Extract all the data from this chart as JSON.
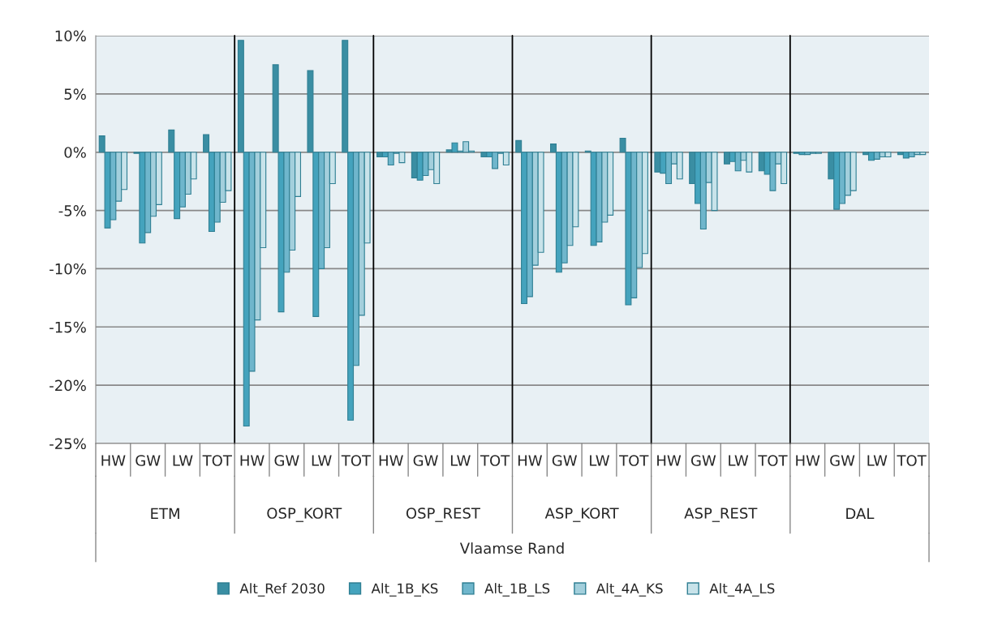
{
  "chart_data": {
    "type": "bar",
    "categories": [
      "HW",
      "GW",
      "LW",
      "TOT",
      "HW",
      "GW",
      "LW",
      "TOT",
      "HW",
      "GW",
      "LW",
      "TOT",
      "HW",
      "GW",
      "LW",
      "TOT",
      "HW",
      "GW",
      "LW",
      "TOT",
      "HW",
      "GW",
      "LW",
      "TOT"
    ],
    "annotations": [
      "ETM",
      "OSP_KORT",
      "OSP_REST",
      "ASP_KORT",
      "ASP_REST",
      "DAL",
      "Vlaamse Rand"
    ],
    "series": [
      {
        "name": "Alt_Ref 2030",
        "color": "#3a8ea3",
        "values": [
          1.4,
          -0.1,
          1.9,
          1.5,
          9.6,
          7.5,
          7.0,
          9.6,
          -0.4,
          -2.2,
          0.2,
          -0.4,
          1.0,
          0.7,
          0.1,
          1.2,
          -1.7,
          -2.7,
          -1.0,
          -1.6,
          -0.1,
          -2.3,
          -0.2,
          -0.2
        ]
      },
      {
        "name": "Alt_1B_KS",
        "color": "#44a3bd",
        "values": [
          -6.5,
          -7.8,
          -5.7,
          -6.8,
          -23.5,
          -13.7,
          -14.1,
          -23.0,
          -0.4,
          -2.4,
          0.8,
          -0.4,
          -13.0,
          -10.3,
          -8.0,
          -13.1,
          -1.8,
          -4.4,
          -0.8,
          -1.9,
          -0.2,
          -4.9,
          -0.7,
          -0.5
        ]
      },
      {
        "name": "Alt_1B_LS",
        "color": "#6fb6cc",
        "values": [
          -5.8,
          -6.9,
          -4.7,
          -6.0,
          -18.8,
          -10.3,
          -10.0,
          -18.3,
          -1.1,
          -2.0,
          0.1,
          -1.4,
          -12.4,
          -9.5,
          -7.7,
          -12.5,
          -2.7,
          -6.6,
          -1.6,
          -3.3,
          -0.2,
          -4.4,
          -0.6,
          -0.4
        ]
      },
      {
        "name": "Alt_4A_KS",
        "color": "#a3cfdc",
        "values": [
          -4.2,
          -5.5,
          -3.6,
          -4.3,
          -14.4,
          -8.4,
          -8.2,
          -14.0,
          -0.1,
          -1.5,
          0.9,
          -0.1,
          -9.7,
          -8.0,
          -6.0,
          -9.9,
          -1.0,
          -2.6,
          -0.7,
          -1.0,
          -0.1,
          -3.7,
          -0.4,
          -0.2
        ]
      },
      {
        "name": "Alt_4A_LS",
        "color": "#c8e3ea",
        "values": [
          -3.2,
          -4.5,
          -2.3,
          -3.3,
          -8.2,
          -3.8,
          -2.7,
          -7.8,
          -0.9,
          -2.7,
          0.1,
          -1.1,
          -8.6,
          -6.4,
          -5.4,
          -8.7,
          -2.3,
          -5.0,
          -1.7,
          -2.7,
          -0.1,
          -3.3,
          -0.4,
          -0.2
        ]
      }
    ],
    "ylim": [
      -25,
      10
    ],
    "yticks": [
      {
        "value": 10,
        "label": "10%"
      },
      {
        "value": 5,
        "label": "5%"
      },
      {
        "value": 0,
        "label": "0%"
      },
      {
        "value": -5,
        "label": "-5%"
      },
      {
        "value": -10,
        "label": "-10%"
      },
      {
        "value": -15,
        "label": "-15%"
      },
      {
        "value": -20,
        "label": "-20%"
      },
      {
        "value": -25,
        "label": "-25%"
      }
    ],
    "grid": "y",
    "legend": "bottom"
  }
}
